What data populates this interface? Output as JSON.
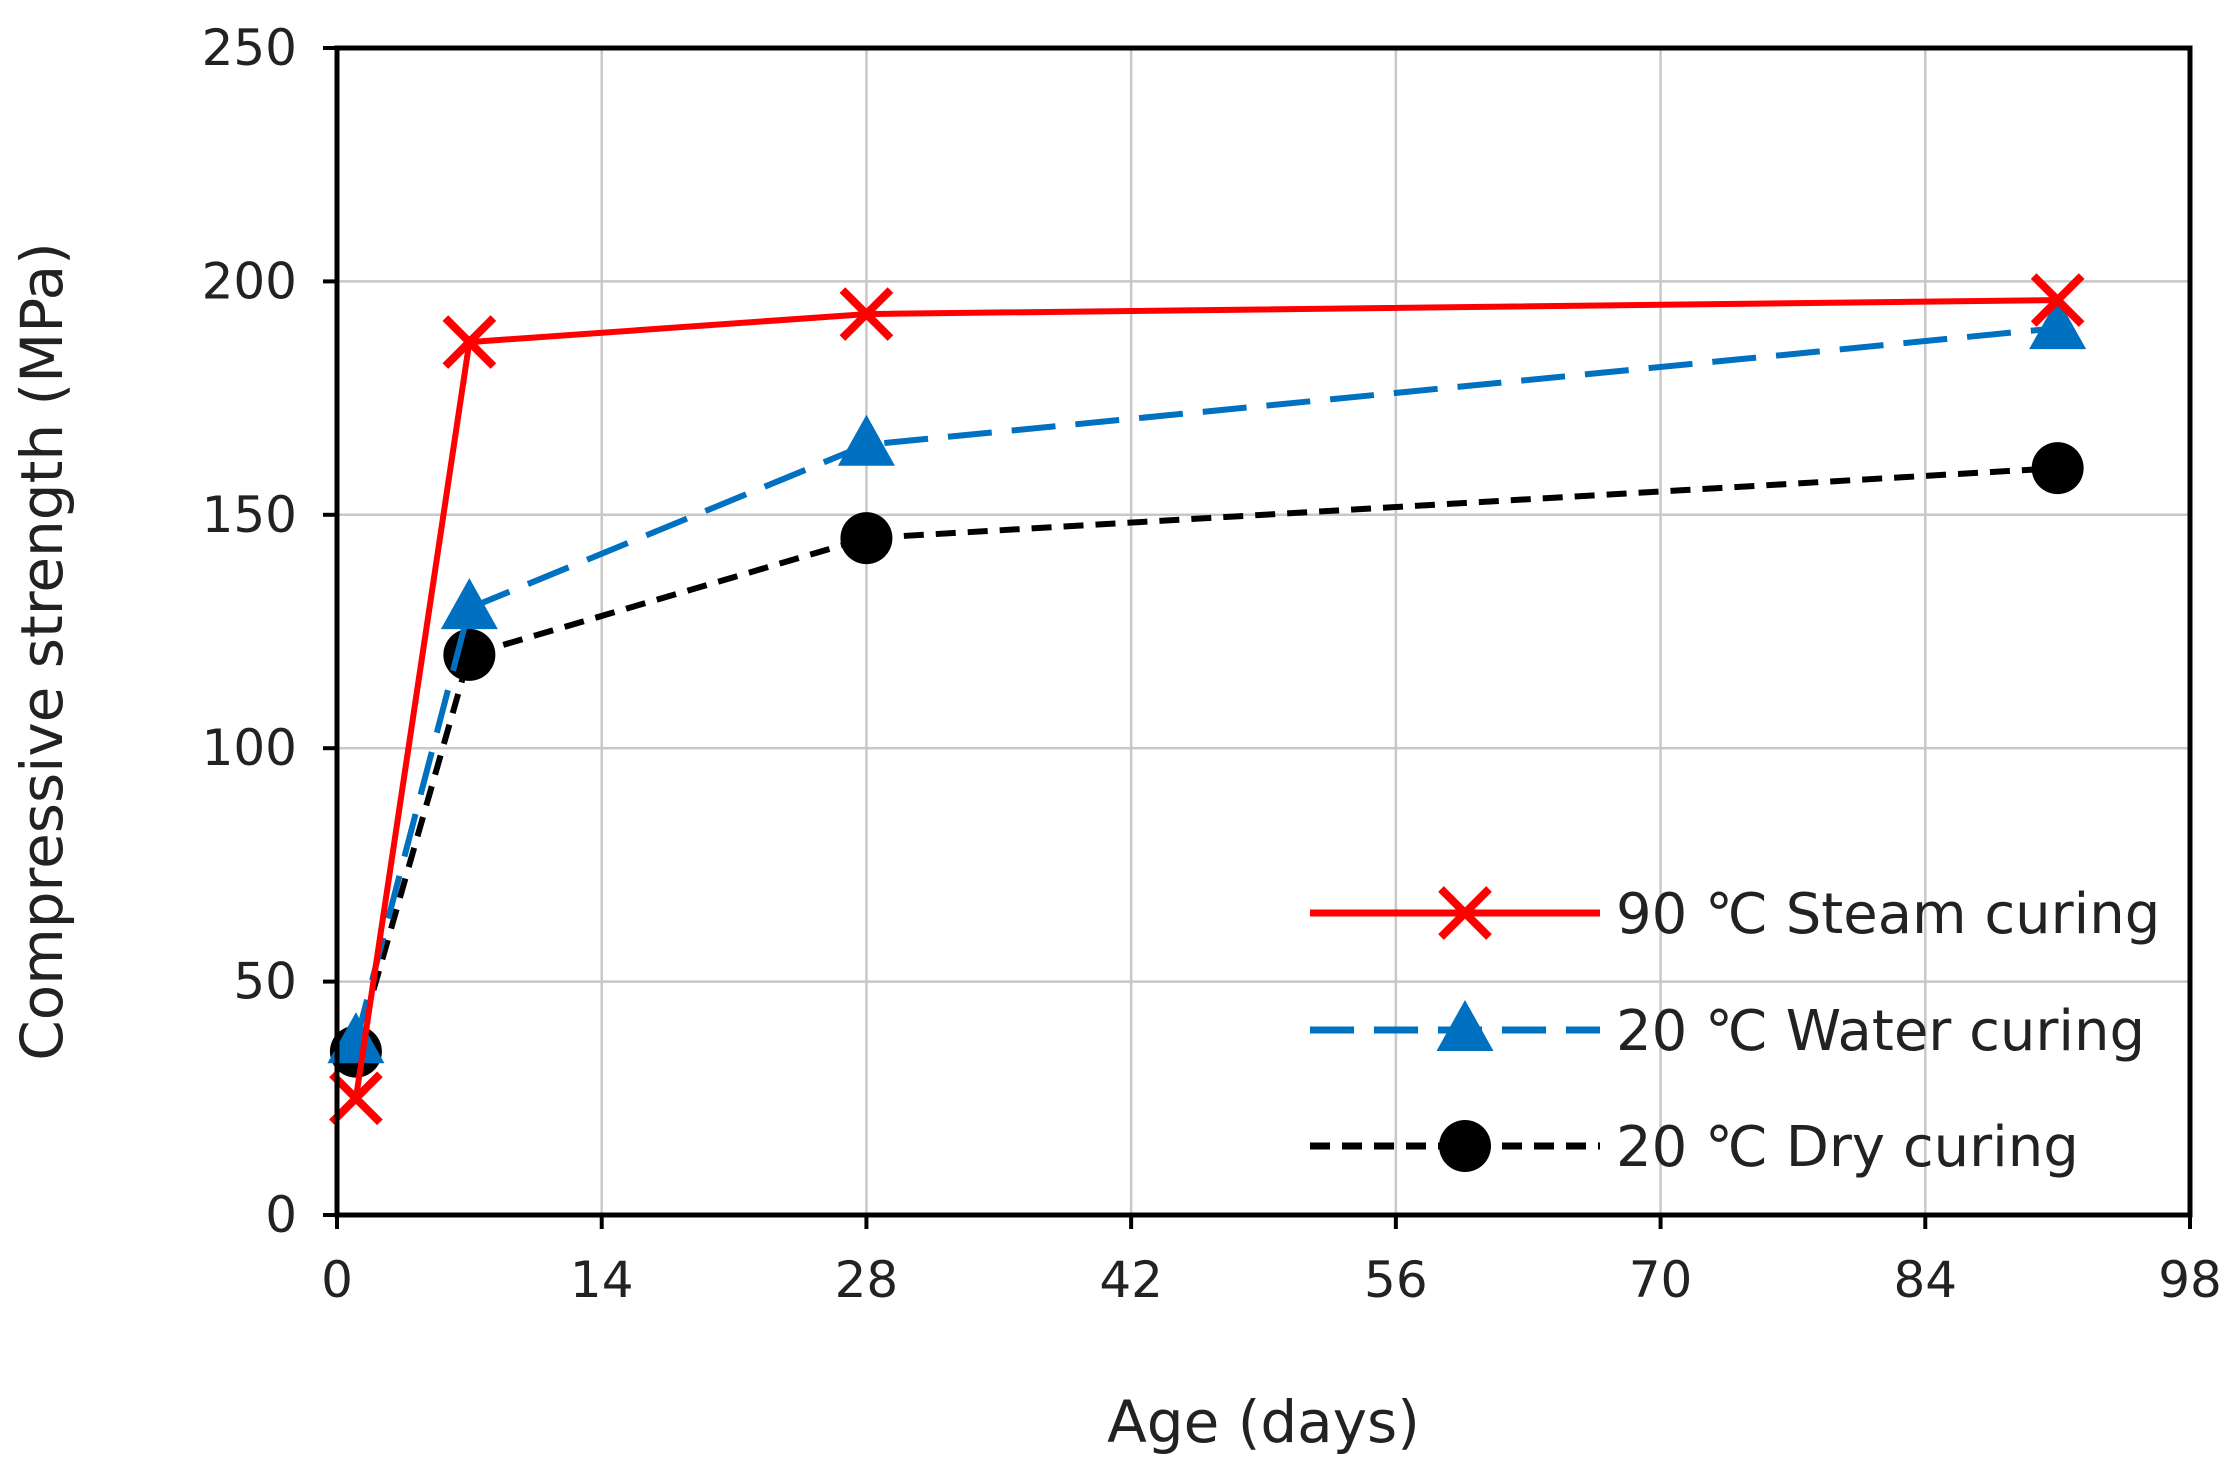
{
  "chart_data": {
    "type": "line",
    "title": "",
    "xlabel": "Age (days)",
    "ylabel": "Compressive strength (MPa)",
    "xlim": [
      0,
      98
    ],
    "ylim": [
      0,
      250
    ],
    "xticks": [
      0,
      14,
      28,
      42,
      56,
      70,
      84,
      98
    ],
    "yticks": [
      0,
      50,
      100,
      150,
      200,
      250
    ],
    "grid": true,
    "legend_position": "bottom-right",
    "series": [
      {
        "name": "90 ℃ Steam curing",
        "color": "#ff0000",
        "line_style": "solid",
        "marker": "x",
        "x": [
          1,
          7,
          28,
          91
        ],
        "y": [
          25,
          187,
          193,
          196
        ]
      },
      {
        "name": "20 ℃ Water curing",
        "color": "#0070c0",
        "line_style": "long-dash",
        "marker": "triangle",
        "x": [
          1,
          7,
          28,
          91
        ],
        "y": [
          37,
          130,
          165,
          190
        ]
      },
      {
        "name": "20 ℃ Dry curing",
        "color": "#000000",
        "line_style": "short-dash",
        "marker": "circle",
        "x": [
          1,
          7,
          28,
          91
        ],
        "y": [
          35,
          120,
          145,
          160
        ]
      }
    ]
  }
}
